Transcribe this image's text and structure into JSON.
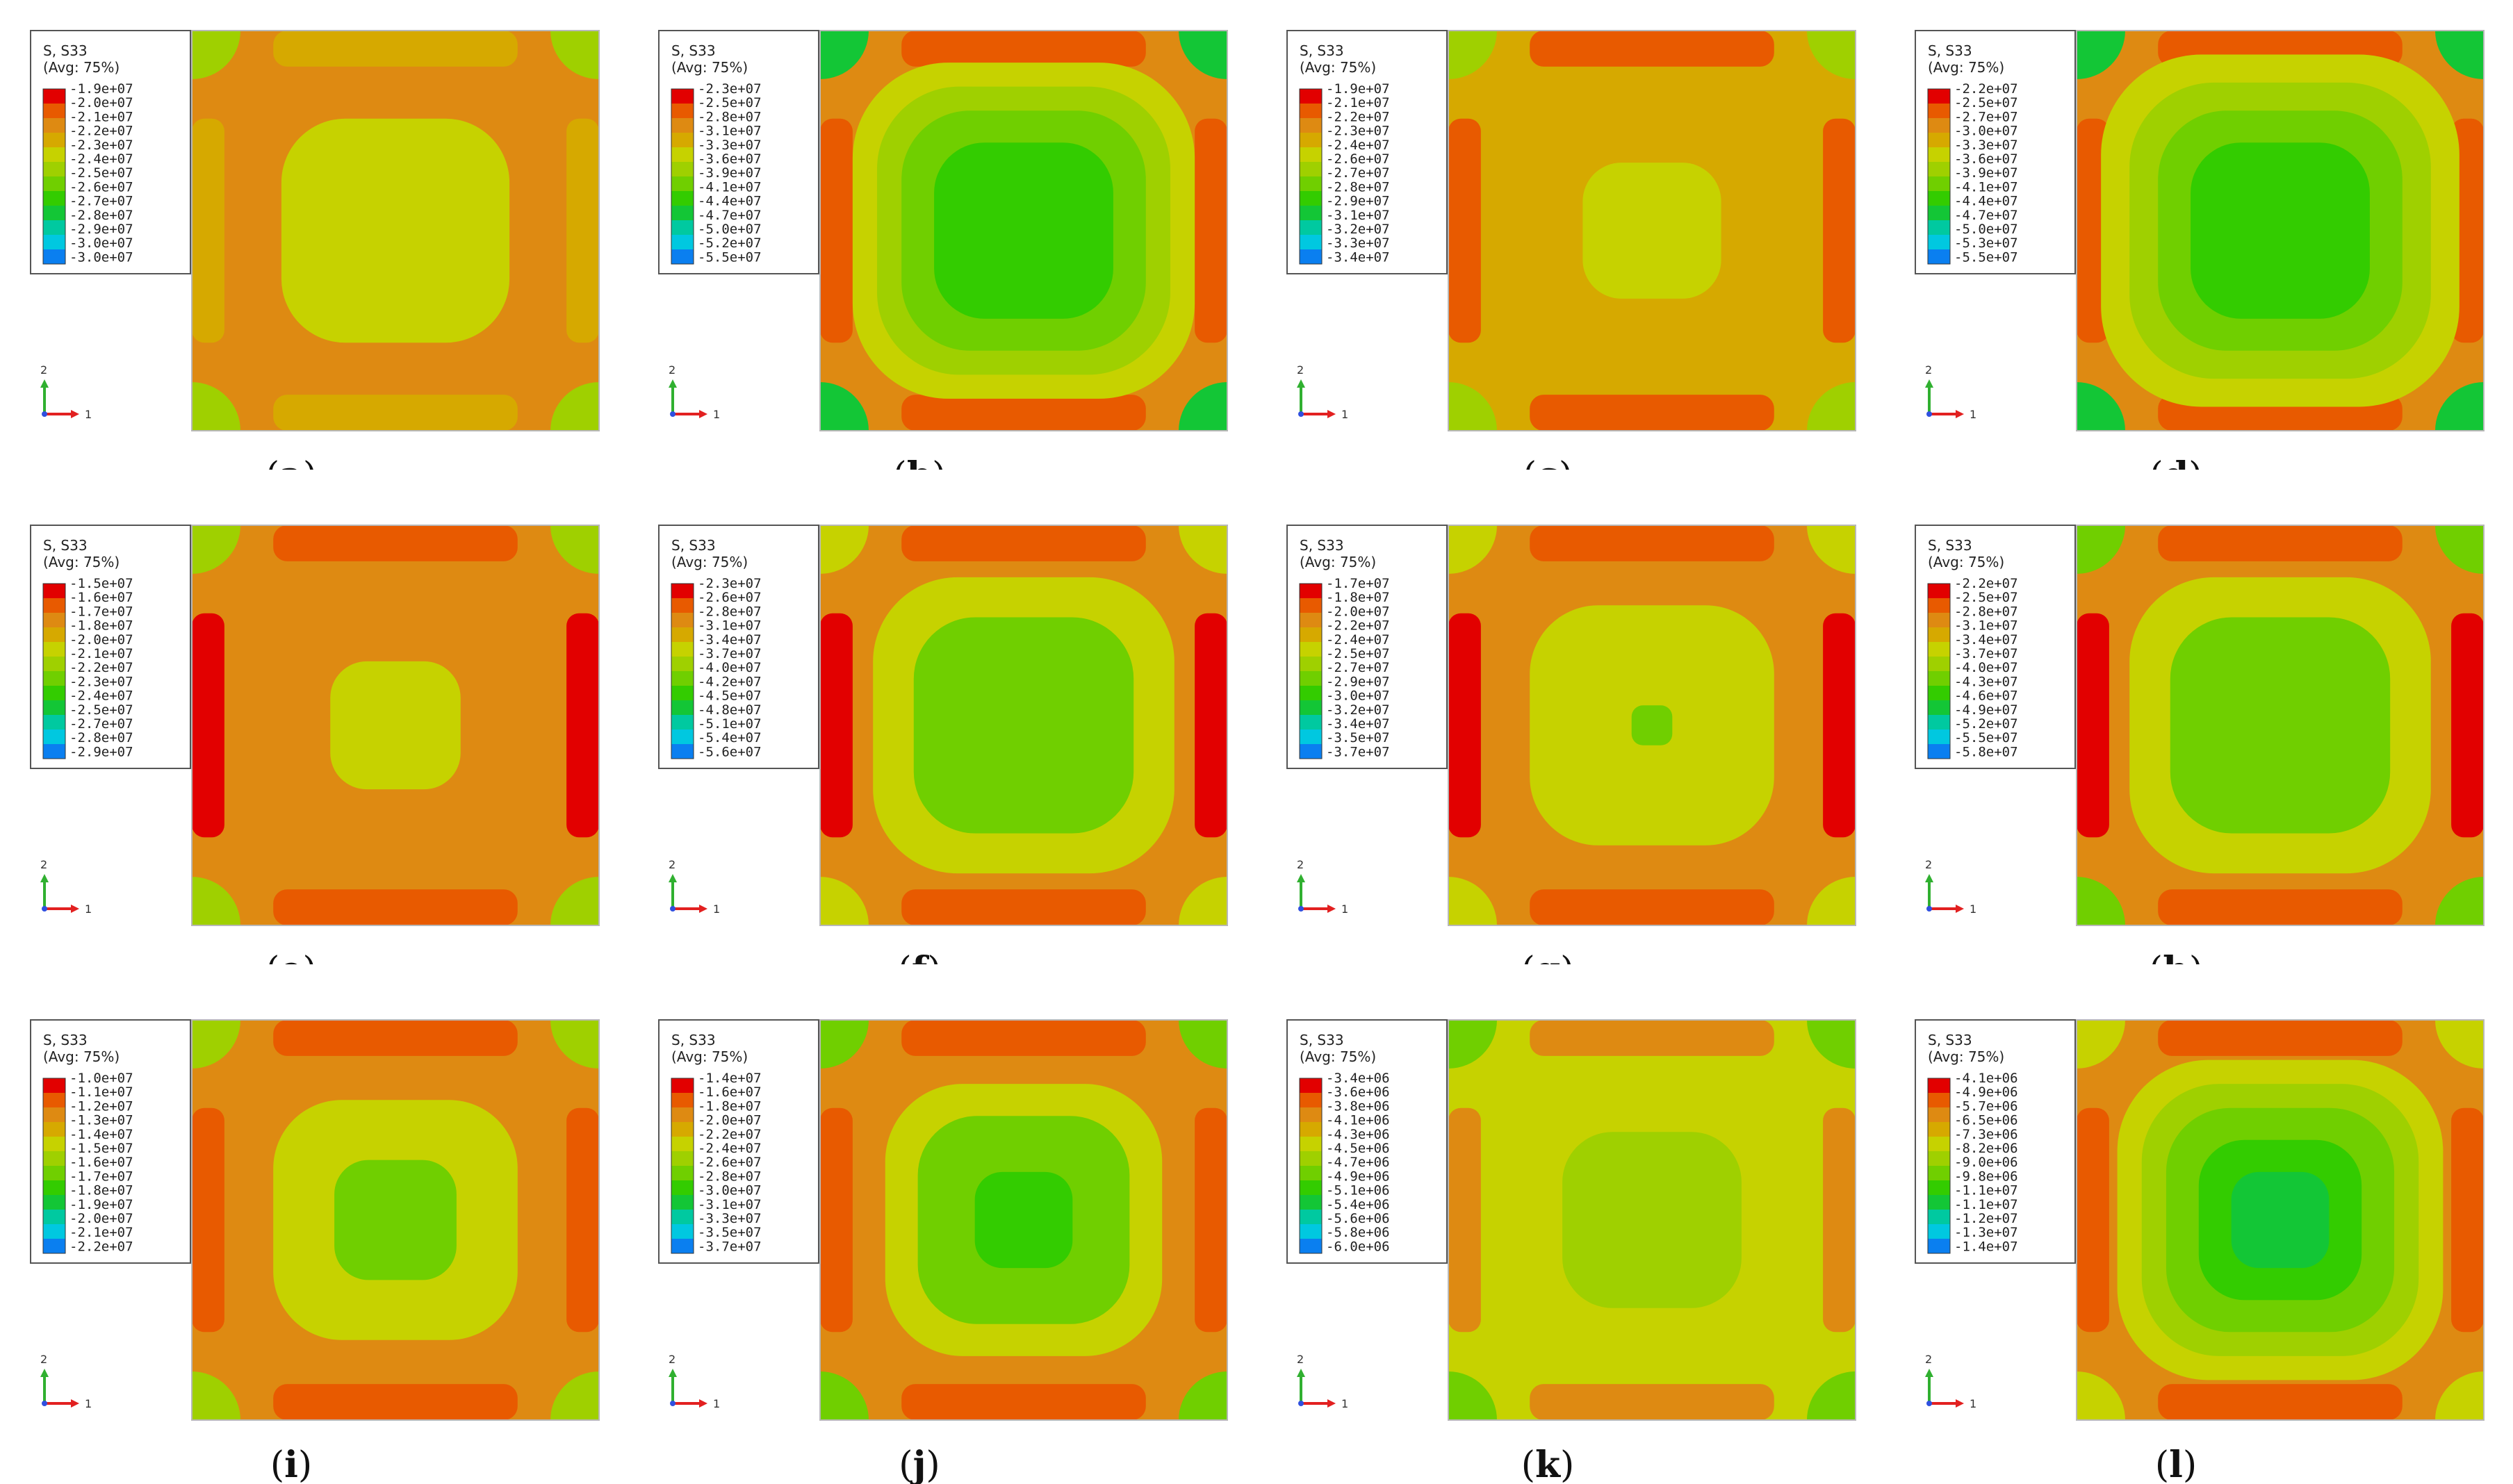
{
  "colors": {
    "red": "#e20000",
    "red_orange": "#e85a00",
    "orange": "#de8a12",
    "dark_yellow": "#d6a900",
    "yellow": "#c6d200",
    "yellow_green": "#9fd000",
    "green_light": "#70cf00",
    "green": "#33cc00",
    "green2": "#13c636",
    "teal": "#00c9a0",
    "cyan": "#00c8e0",
    "blue_light": "#0a7ff0",
    "blue": "#0000e0",
    "frame": "#b8b8b8",
    "axis_red": "#e22020",
    "axis_green": "#30b030",
    "axis_blue": "#3050e0"
  },
  "panels": [
    {
      "tag": "(",
      "letter": "a",
      "close": ")",
      "legend_title": "S, S33",
      "legend_avg": "(Avg: 75%)",
      "axis_y": "2",
      "axis_x": "1",
      "ticks": [
        "-1.9e+07",
        "-2.0e+07",
        "-2.1e+07",
        "-2.2e+07",
        "-2.3e+07",
        "-2.4e+07",
        "-2.5e+07",
        "-2.6e+07",
        "-2.7e+07",
        "-2.8e+07",
        "-2.9e+07",
        "-3.0e+07",
        "-3.0e+07"
      ]
    },
    {
      "tag": "(",
      "letter": "b",
      "close": ")",
      "legend_title": "S, S33",
      "legend_avg": "(Avg: 75%)",
      "axis_y": "2",
      "axis_x": "1",
      "ticks": [
        "-2.3e+07",
        "-2.5e+07",
        "-2.8e+07",
        "-3.1e+07",
        "-3.3e+07",
        "-3.6e+07",
        "-3.9e+07",
        "-4.1e+07",
        "-4.4e+07",
        "-4.7e+07",
        "-5.0e+07",
        "-5.2e+07",
        "-5.5e+07"
      ]
    },
    {
      "tag": "(",
      "letter": "c",
      "close": ")",
      "legend_title": "S, S33",
      "legend_avg": "(Avg: 75%)",
      "axis_y": "2",
      "axis_x": "1",
      "ticks": [
        "-1.9e+07",
        "-2.1e+07",
        "-2.2e+07",
        "-2.3e+07",
        "-2.4e+07",
        "-2.6e+07",
        "-2.7e+07",
        "-2.8e+07",
        "-2.9e+07",
        "-3.1e+07",
        "-3.2e+07",
        "-3.3e+07",
        "-3.4e+07"
      ]
    },
    {
      "tag": "(",
      "letter": "d",
      "close": ")",
      "legend_title": "S, S33",
      "legend_avg": "(Avg: 75%)",
      "axis_y": "2",
      "axis_x": "1",
      "ticks": [
        "-2.2e+07",
        "-2.5e+07",
        "-2.7e+07",
        "-3.0e+07",
        "-3.3e+07",
        "-3.6e+07",
        "-3.9e+07",
        "-4.1e+07",
        "-4.4e+07",
        "-4.7e+07",
        "-5.0e+07",
        "-5.3e+07",
        "-5.5e+07"
      ]
    },
    {
      "tag": "(",
      "letter": "e",
      "close": ")",
      "legend_title": "S, S33",
      "legend_avg": "(Avg: 75%)",
      "axis_y": "2",
      "axis_x": "1",
      "ticks": [
        "-1.5e+07",
        "-1.6e+07",
        "-1.7e+07",
        "-1.8e+07",
        "-2.0e+07",
        "-2.1e+07",
        "-2.2e+07",
        "-2.3e+07",
        "-2.4e+07",
        "-2.5e+07",
        "-2.7e+07",
        "-2.8e+07",
        "-2.9e+07"
      ]
    },
    {
      "tag": "(",
      "letter": "f",
      "close": ")",
      "legend_title": "S, S33",
      "legend_avg": "(Avg: 75%)",
      "axis_y": "2",
      "axis_x": "1",
      "ticks": [
        "-2.3e+07",
        "-2.6e+07",
        "-2.8e+07",
        "-3.1e+07",
        "-3.4e+07",
        "-3.7e+07",
        "-4.0e+07",
        "-4.2e+07",
        "-4.5e+07",
        "-4.8e+07",
        "-5.1e+07",
        "-5.4e+07",
        "-5.6e+07"
      ]
    },
    {
      "tag": "(",
      "letter": "g",
      "close": ")",
      "legend_title": "S, S33",
      "legend_avg": "(Avg: 75%)",
      "axis_y": "2",
      "axis_x": "1",
      "ticks": [
        "-1.7e+07",
        "-1.8e+07",
        "-2.0e+07",
        "-2.2e+07",
        "-2.4e+07",
        "-2.5e+07",
        "-2.7e+07",
        "-2.9e+07",
        "-3.0e+07",
        "-3.2e+07",
        "-3.4e+07",
        "-3.5e+07",
        "-3.7e+07"
      ]
    },
    {
      "tag": "(",
      "letter": "h",
      "close": ")",
      "legend_title": "S, S33",
      "legend_avg": "(Avg: 75%)",
      "axis_y": "2",
      "axis_x": "1",
      "ticks": [
        "-2.2e+07",
        "-2.5e+07",
        "-2.8e+07",
        "-3.1e+07",
        "-3.4e+07",
        "-3.7e+07",
        "-4.0e+07",
        "-4.3e+07",
        "-4.6e+07",
        "-4.9e+07",
        "-5.2e+07",
        "-5.5e+07",
        "-5.8e+07"
      ]
    },
    {
      "tag": "(",
      "letter": "i",
      "close": ")",
      "legend_title": "S, S33",
      "legend_avg": "(Avg: 75%)",
      "axis_y": "2",
      "axis_x": "1",
      "ticks": [
        "-1.0e+07",
        "-1.1e+07",
        "-1.2e+07",
        "-1.3e+07",
        "-1.4e+07",
        "-1.5e+07",
        "-1.6e+07",
        "-1.7e+07",
        "-1.8e+07",
        "-1.9e+07",
        "-2.0e+07",
        "-2.1e+07",
        "-2.2e+07"
      ]
    },
    {
      "tag": "(",
      "letter": "j",
      "close": ")",
      "legend_title": "S, S33",
      "legend_avg": "(Avg: 75%)",
      "axis_y": "2",
      "axis_x": "1",
      "ticks": [
        "-1.4e+07",
        "-1.6e+07",
        "-1.8e+07",
        "-2.0e+07",
        "-2.2e+07",
        "-2.4e+07",
        "-2.6e+07",
        "-2.8e+07",
        "-3.0e+07",
        "-3.1e+07",
        "-3.3e+07",
        "-3.5e+07",
        "-3.7e+07"
      ]
    },
    {
      "tag": "(",
      "letter": "k",
      "close": ")",
      "legend_title": "S, S33",
      "legend_avg": "(Avg: 75%)",
      "axis_y": "2",
      "axis_x": "1",
      "ticks": [
        "-3.4e+06",
        "-3.6e+06",
        "-3.8e+06",
        "-4.1e+06",
        "-4.3e+06",
        "-4.5e+06",
        "-4.7e+06",
        "-4.9e+06",
        "-5.1e+06",
        "-5.4e+06",
        "-5.6e+06",
        "-5.8e+06",
        "-6.0e+06"
      ]
    },
    {
      "tag": "(",
      "letter": "l",
      "close": ")",
      "legend_title": "S, S33",
      "legend_avg": "(Avg: 75%)",
      "axis_y": "2",
      "axis_x": "1",
      "ticks": [
        "-4.1e+06",
        "-4.9e+06",
        "-5.7e+06",
        "-6.5e+06",
        "-7.3e+06",
        "-8.2e+06",
        "-9.0e+06",
        "-9.8e+06",
        "-1.1e+07",
        "-1.1e+07",
        "-1.2e+07",
        "-1.3e+07",
        "-1.4e+07"
      ]
    }
  ]
}
